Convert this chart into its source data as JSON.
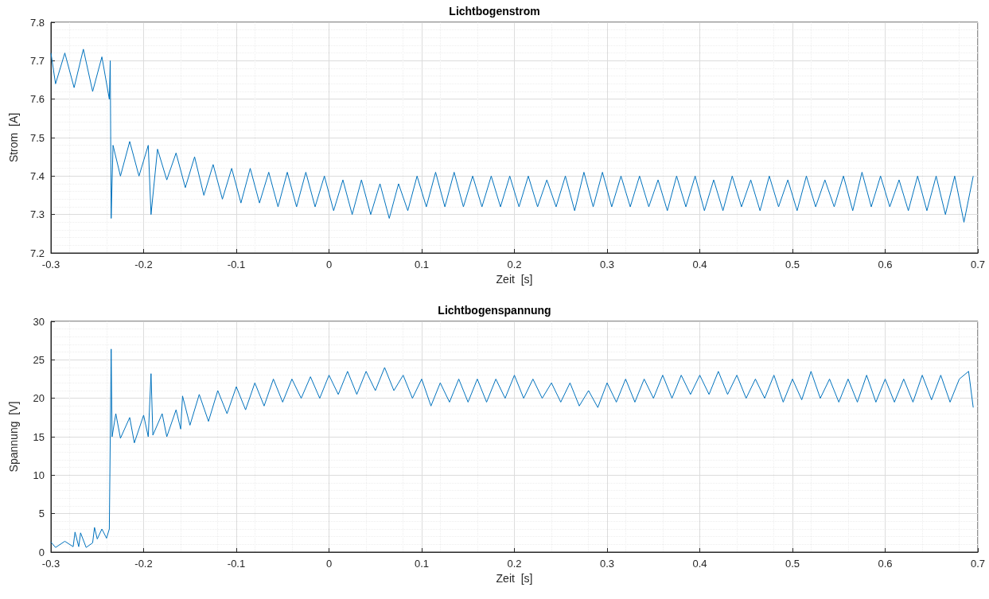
{
  "chart_data": [
    {
      "type": "line",
      "title": "Lichtbogenstrom",
      "xlabel": "Zeit  [s]",
      "ylabel": "Strom  [A]",
      "series": [
        {
          "color": "#0072bd",
          "x": [
            -0.3,
            -0.295,
            -0.285,
            -0.275,
            -0.265,
            -0.255,
            -0.245,
            -0.237,
            -0.236,
            -0.235,
            -0.233,
            -0.225,
            -0.215,
            -0.205,
            -0.195,
            -0.192,
            -0.185,
            -0.175,
            -0.165,
            -0.155,
            -0.145,
            -0.135,
            -0.125,
            -0.115,
            -0.105,
            -0.095,
            -0.085,
            -0.075,
            -0.065,
            -0.055,
            -0.045,
            -0.035,
            -0.025,
            -0.015,
            -0.005,
            0.005,
            0.015,
            0.025,
            0.035,
            0.045,
            0.055,
            0.065,
            0.075,
            0.085,
            0.095,
            0.105,
            0.115,
            0.125,
            0.135,
            0.145,
            0.155,
            0.165,
            0.175,
            0.185,
            0.195,
            0.205,
            0.215,
            0.225,
            0.235,
            0.245,
            0.255,
            0.265,
            0.275,
            0.285,
            0.295,
            0.305,
            0.315,
            0.325,
            0.335,
            0.345,
            0.355,
            0.365,
            0.375,
            0.385,
            0.395,
            0.405,
            0.415,
            0.425,
            0.435,
            0.445,
            0.455,
            0.465,
            0.475,
            0.485,
            0.495,
            0.505,
            0.515,
            0.525,
            0.535,
            0.545,
            0.555,
            0.565,
            0.575,
            0.585,
            0.595,
            0.605,
            0.615,
            0.625,
            0.635,
            0.645,
            0.655,
            0.665,
            0.675,
            0.685,
            0.695
          ],
          "values": [
            7.72,
            7.64,
            7.72,
            7.63,
            7.73,
            7.62,
            7.71,
            7.6,
            7.7,
            7.29,
            7.48,
            7.4,
            7.49,
            7.4,
            7.48,
            7.3,
            7.47,
            7.39,
            7.46,
            7.37,
            7.45,
            7.35,
            7.43,
            7.34,
            7.42,
            7.33,
            7.42,
            7.33,
            7.41,
            7.32,
            7.41,
            7.32,
            7.41,
            7.32,
            7.4,
            7.31,
            7.39,
            7.3,
            7.39,
            7.3,
            7.38,
            7.29,
            7.38,
            7.31,
            7.4,
            7.32,
            7.41,
            7.32,
            7.41,
            7.32,
            7.4,
            7.32,
            7.4,
            7.32,
            7.4,
            7.32,
            7.4,
            7.32,
            7.39,
            7.32,
            7.4,
            7.31,
            7.41,
            7.32,
            7.41,
            7.32,
            7.4,
            7.32,
            7.4,
            7.32,
            7.39,
            7.31,
            7.4,
            7.32,
            7.4,
            7.31,
            7.39,
            7.31,
            7.4,
            7.32,
            7.39,
            7.31,
            7.4,
            7.32,
            7.39,
            7.31,
            7.4,
            7.32,
            7.39,
            7.32,
            7.4,
            7.31,
            7.41,
            7.32,
            7.4,
            7.32,
            7.39,
            7.31,
            7.4,
            7.31,
            7.4,
            7.3,
            7.4,
            7.28,
            7.4
          ]
        }
      ],
      "xlim": [
        -0.3,
        0.7
      ],
      "xticks": [
        -0.3,
        -0.2,
        -0.1,
        0,
        0.1,
        0.2,
        0.3,
        0.4,
        0.5,
        0.6,
        0.7
      ],
      "ylim": [
        7.2,
        7.8
      ],
      "yticks": [
        7.2,
        7.3,
        7.4,
        7.5,
        7.6,
        7.7,
        7.8
      ],
      "grid": true
    },
    {
      "type": "line",
      "title": "Lichtbogenspannung",
      "xlabel": "Zeit  [s]",
      "ylabel": "Spannung  [V]",
      "series": [
        {
          "color": "#0072bd",
          "x": [
            -0.3,
            -0.295,
            -0.285,
            -0.276,
            -0.274,
            -0.27,
            -0.268,
            -0.262,
            -0.255,
            -0.253,
            -0.25,
            -0.245,
            -0.24,
            -0.237,
            -0.235,
            -0.234,
            -0.23,
            -0.225,
            -0.215,
            -0.21,
            -0.2,
            -0.195,
            -0.192,
            -0.19,
            -0.18,
            -0.175,
            -0.165,
            -0.16,
            -0.158,
            -0.15,
            -0.14,
            -0.13,
            -0.12,
            -0.11,
            -0.1,
            -0.09,
            -0.08,
            -0.07,
            -0.06,
            -0.05,
            -0.04,
            -0.03,
            -0.02,
            -0.01,
            0,
            0.01,
            0.02,
            0.03,
            0.04,
            0.05,
            0.06,
            0.07,
            0.08,
            0.09,
            0.1,
            0.11,
            0.12,
            0.13,
            0.14,
            0.15,
            0.16,
            0.17,
            0.18,
            0.19,
            0.2,
            0.21,
            0.22,
            0.23,
            0.24,
            0.25,
            0.26,
            0.27,
            0.28,
            0.29,
            0.3,
            0.31,
            0.32,
            0.33,
            0.34,
            0.35,
            0.36,
            0.37,
            0.38,
            0.39,
            0.4,
            0.41,
            0.42,
            0.43,
            0.44,
            0.45,
            0.46,
            0.47,
            0.48,
            0.49,
            0.5,
            0.51,
            0.52,
            0.53,
            0.54,
            0.55,
            0.56,
            0.57,
            0.58,
            0.59,
            0.6,
            0.61,
            0.62,
            0.63,
            0.64,
            0.65,
            0.66,
            0.67,
            0.68,
            0.69,
            0.695
          ],
          "values": [
            1.3,
            0.6,
            1.4,
            0.7,
            2.6,
            0.7,
            2.5,
            0.6,
            1.2,
            3.2,
            1.7,
            3,
            1.8,
            3,
            26.4,
            15,
            18,
            14.8,
            17.5,
            14.2,
            17.8,
            15,
            23.2,
            15.2,
            18,
            15,
            18.5,
            16,
            20.3,
            16.5,
            20.5,
            17,
            21,
            18,
            21.5,
            18.5,
            22,
            19,
            22.5,
            19.5,
            22.5,
            20,
            22.8,
            20,
            23,
            20.5,
            23.5,
            20.5,
            23.5,
            21,
            24,
            21,
            23,
            20,
            22.5,
            19,
            22,
            19.5,
            22.5,
            19.5,
            22.5,
            19.5,
            22.5,
            20,
            23,
            20,
            22.5,
            20,
            22,
            19.5,
            22,
            19,
            21,
            18.8,
            22,
            19.5,
            22.5,
            19.5,
            22.5,
            20,
            23,
            20,
            23,
            20.5,
            23,
            20.5,
            23.5,
            20.5,
            23,
            20,
            22.5,
            20,
            23,
            19.5,
            22.5,
            19.8,
            23.5,
            20,
            22.5,
            19.5,
            22.5,
            19.5,
            23,
            19.5,
            22.5,
            19.5,
            22.5,
            19.5,
            23,
            19.8,
            23,
            19.5,
            22.5,
            23.5,
            18.8
          ]
        }
      ],
      "xlim": [
        -0.3,
        0.7
      ],
      "xticks": [
        -0.3,
        -0.2,
        -0.1,
        0,
        0.1,
        0.2,
        0.3,
        0.4,
        0.5,
        0.6,
        0.7
      ],
      "ylim": [
        0,
        30
      ],
      "yticks": [
        0,
        5,
        10,
        15,
        20,
        25,
        30
      ],
      "grid": true
    }
  ]
}
